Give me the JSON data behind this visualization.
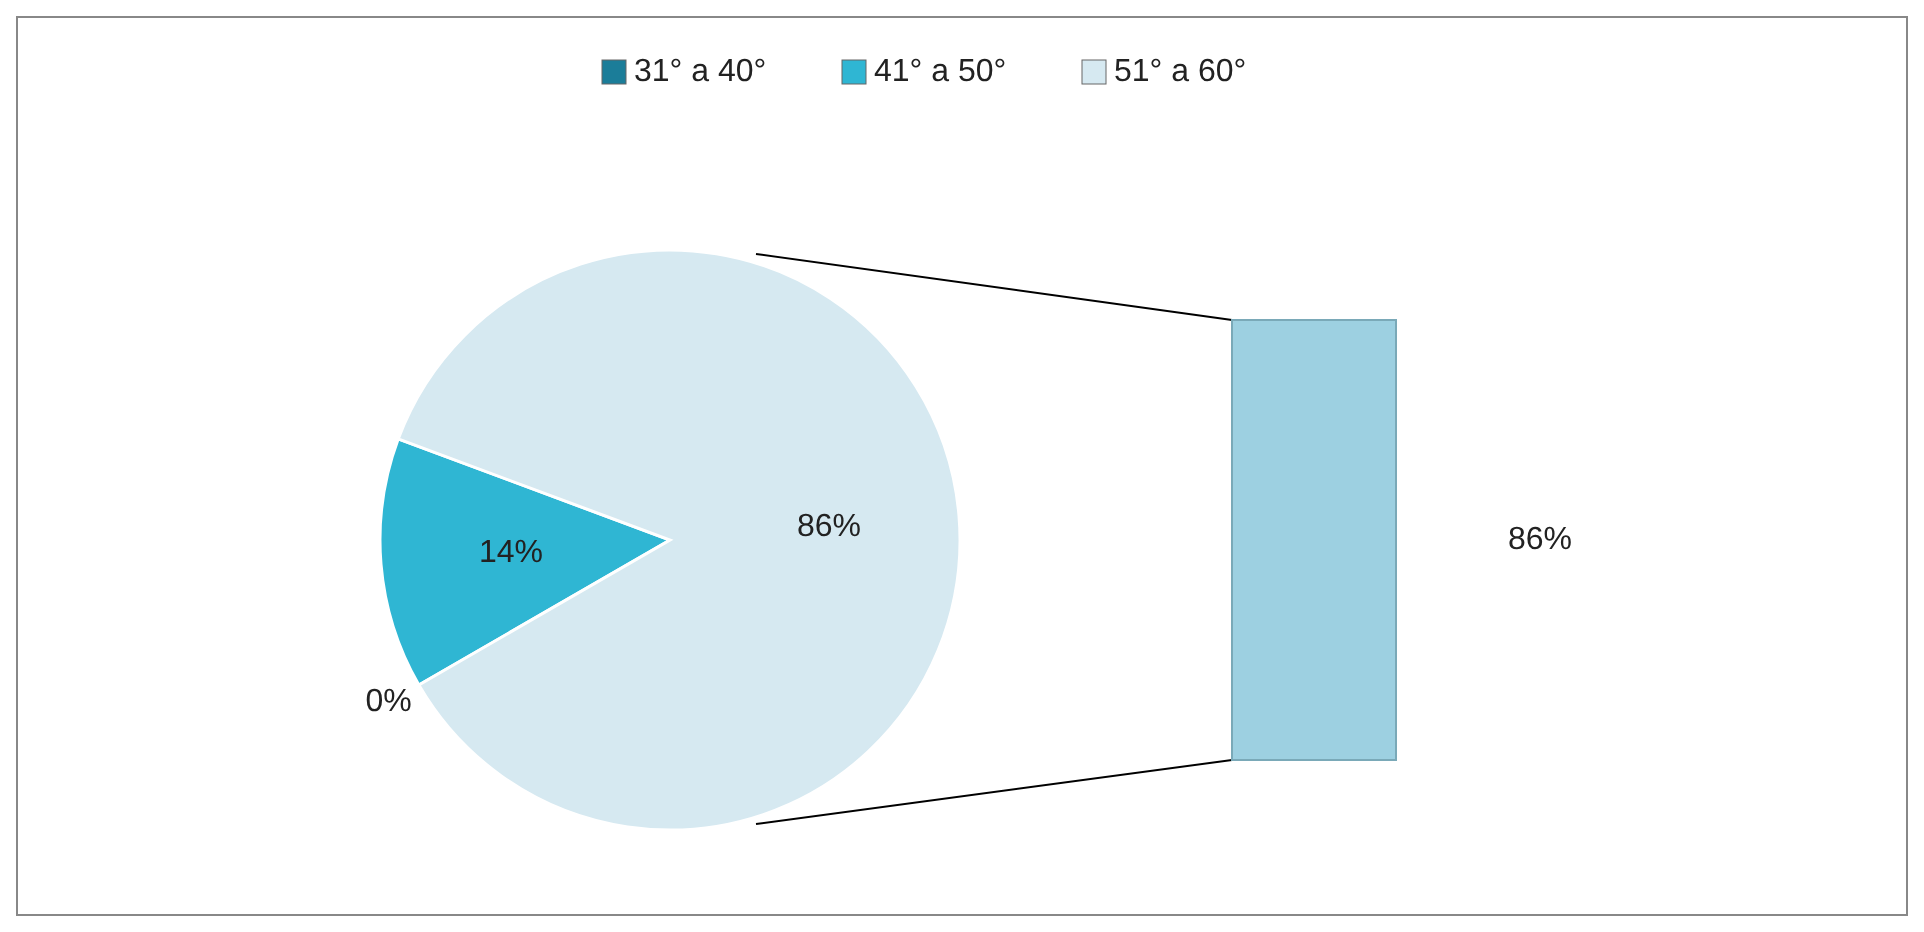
{
  "chart_data": {
    "type": "pie",
    "categories": [
      "31° a 40°",
      "41° a 50°",
      "51° a 60°"
    ],
    "values": [
      0,
      14,
      86
    ],
    "colors": [
      "#1b7d99",
      "#2fb6d3",
      "#d6e9f1"
    ],
    "value_labels": [
      "0%",
      "14%",
      "86%"
    ],
    "legend": "top",
    "annotations": [
      "86%"
    ]
  }
}
